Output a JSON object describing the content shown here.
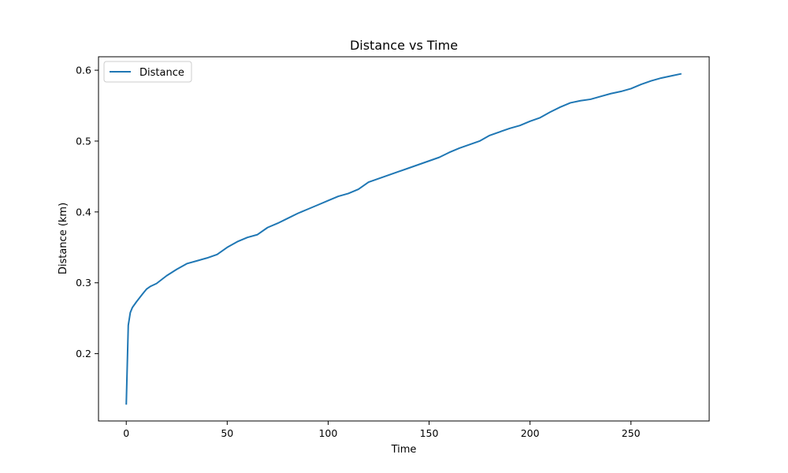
{
  "chart_data": {
    "type": "line",
    "title": "Distance vs Time",
    "xlabel": "Time",
    "ylabel": "Distance (km)",
    "xlim": [
      -13.75,
      288.75
    ],
    "ylim": [
      0.105,
      0.619
    ],
    "xticks": [
      0,
      50,
      100,
      150,
      200,
      250
    ],
    "yticks": [
      0.2,
      0.3,
      0.4,
      0.5,
      0.6
    ],
    "grid": false,
    "legend": {
      "position": "top-left",
      "entries": [
        "Distance"
      ]
    },
    "series": [
      {
        "name": "Distance",
        "color": "#1f77b4",
        "x": [
          0,
          1,
          2,
          3,
          5,
          8,
          10,
          12,
          15,
          20,
          25,
          30,
          35,
          40,
          45,
          50,
          55,
          60,
          65,
          70,
          75,
          80,
          85,
          90,
          95,
          100,
          105,
          110,
          115,
          120,
          125,
          130,
          135,
          140,
          145,
          150,
          155,
          160,
          165,
          170,
          175,
          180,
          185,
          190,
          195,
          200,
          205,
          210,
          215,
          220,
          225,
          230,
          235,
          240,
          245,
          250,
          255,
          260,
          265,
          270,
          275
        ],
        "y": [
          0.128,
          0.24,
          0.258,
          0.265,
          0.273,
          0.284,
          0.291,
          0.295,
          0.299,
          0.31,
          0.319,
          0.327,
          0.331,
          0.335,
          0.34,
          0.35,
          0.358,
          0.364,
          0.368,
          0.378,
          0.384,
          0.391,
          0.398,
          0.404,
          0.41,
          0.416,
          0.422,
          0.426,
          0.432,
          0.442,
          0.447,
          0.452,
          0.457,
          0.462,
          0.467,
          0.472,
          0.477,
          0.484,
          0.49,
          0.495,
          0.5,
          0.508,
          0.513,
          0.518,
          0.522,
          0.528,
          0.533,
          0.541,
          0.548,
          0.554,
          0.557,
          0.559,
          0.563,
          0.567,
          0.57,
          0.574,
          0.58,
          0.585,
          0.589,
          0.592,
          0.595
        ]
      }
    ]
  }
}
